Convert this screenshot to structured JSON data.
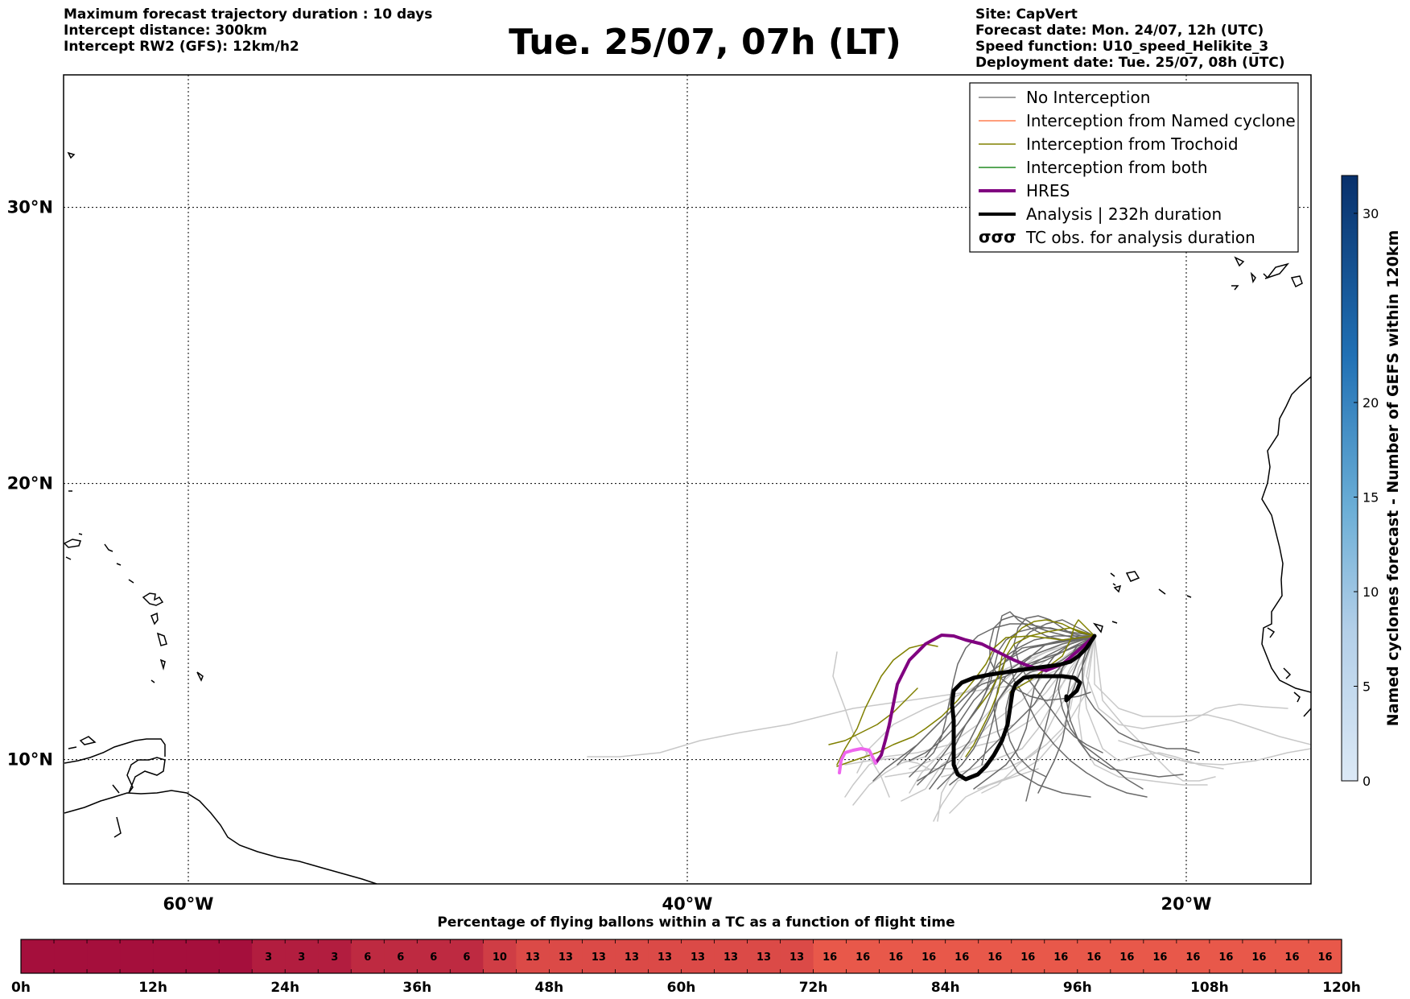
{
  "header": {
    "left_lines": [
      "Maximum forecast trajectory duration : 10 days",
      "Intercept distance: 300km",
      "Intercept RW2 (GFS):  12km/h2"
    ],
    "title": "Tue. 25/07, 07h (LT)",
    "right_lines": [
      "Site: CapVert",
      "Forecast date: Mon. 24/07, 12h (UTC)",
      "Speed function: U10_speed_Helikite_3",
      "Deployment date: Tue. 25/07, 08h (UTC)"
    ]
  },
  "map": {
    "lon_range": [
      -65,
      -15
    ],
    "lat_range": [
      5.5,
      34.8
    ],
    "meridians": [
      {
        "lon": -60,
        "label": "60°W"
      },
      {
        "lon": -40,
        "label": "40°W"
      },
      {
        "lon": -20,
        "label": "20°W"
      }
    ],
    "parallels": [
      {
        "lat": 30,
        "label": "30°N"
      },
      {
        "lat": 20,
        "label": "20°N"
      },
      {
        "lat": 10,
        "label": "10°N"
      }
    ],
    "grid": true,
    "site_name": "CapVert"
  },
  "legend": {
    "placement": "top-right",
    "entries": [
      {
        "label": "No Interception",
        "color": "#808080",
        "style": "line-thin"
      },
      {
        "label": "Interception from Named cyclone",
        "color": "#ff7f50",
        "style": "line-thin"
      },
      {
        "label": "Interception from Trochoid",
        "color": "#808000",
        "style": "line-thin"
      },
      {
        "label": "Interception from both",
        "color": "#228b22",
        "style": "line-thin"
      },
      {
        "label": "HRES",
        "color": "#800080",
        "style": "line-thick"
      },
      {
        "label": "Analysis | 232h duration",
        "color": "#000000",
        "style": "line-thick"
      },
      {
        "label": "TC obs. for analysis duration",
        "color": "#000000",
        "style": "tc-symbol"
      }
    ]
  },
  "colorbar": {
    "label": "Named cyclones forecast - Number of GEFS within 120km",
    "range": [
      0,
      32
    ],
    "ticks": [
      "0",
      "5",
      "10",
      "15",
      "20",
      "30"
    ],
    "tick_values": [
      0,
      5,
      10,
      15,
      20,
      30
    ],
    "low_color": "#dce9f6",
    "high_color": "#08306b"
  },
  "flight_bar": {
    "title": "Percentage of flying ballons within a TC as a function of flight time",
    "hours_per_cell": 3,
    "values": [
      "",
      "",
      "",
      "",
      "",
      "",
      "",
      "3",
      "3",
      "3",
      "6",
      "6",
      "6",
      "6",
      "10",
      "13",
      "13",
      "13",
      "13",
      "13",
      "13",
      "13",
      "13",
      "13",
      "16",
      "16",
      "16",
      "16",
      "16",
      "16",
      "16",
      "16",
      "16",
      "16",
      "16",
      "16",
      "16",
      "16",
      "16",
      "16"
    ],
    "numeric_values": [
      0,
      0,
      0,
      0,
      0,
      0,
      0,
      3,
      3,
      3,
      6,
      6,
      6,
      6,
      10,
      13,
      13,
      13,
      13,
      13,
      13,
      13,
      13,
      13,
      16,
      16,
      16,
      16,
      16,
      16,
      16,
      16,
      16,
      16,
      16,
      16,
      16,
      16,
      16,
      16
    ],
    "tick_labels": [
      "0h",
      "12h",
      "24h",
      "36h",
      "48h",
      "60h",
      "72h",
      "84h",
      "96h",
      "108h",
      "120h"
    ],
    "tick_hours": [
      0,
      12,
      24,
      36,
      48,
      60,
      72,
      84,
      96,
      108,
      120
    ],
    "color_low": "#a50f3c",
    "color_high": "#e8584a"
  },
  "trajectories": {
    "no_interception_color": "#696969",
    "far_color": "#c8c8c8",
    "trochoid_color": "#808000",
    "hres_color": "#800080",
    "hres_tail_color": "#ee66ee",
    "analysis_color": "#000000"
  }
}
